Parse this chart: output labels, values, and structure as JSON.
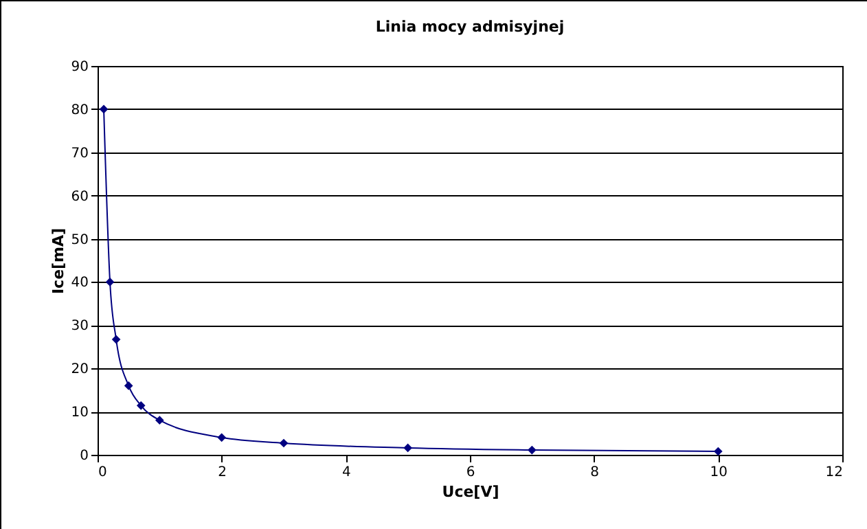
{
  "chart_data": {
    "type": "line",
    "title": "Linia mocy admisyjnej",
    "xlabel": "Uce[V]",
    "ylabel": "Ice[mA]",
    "x": [
      0.1,
      0.2,
      0.3,
      0.5,
      0.7,
      1,
      2,
      3,
      5,
      7,
      10
    ],
    "series": [
      {
        "color": "#000080",
        "values": [
          80,
          40,
          26.7,
          16,
          11.4,
          8,
          4,
          2.7,
          1.6,
          1.1,
          0.8
        ]
      }
    ],
    "xlim": [
      0,
      12
    ],
    "xticks": [
      0,
      2,
      4,
      6,
      8,
      10,
      12
    ],
    "ylim": [
      0,
      90
    ],
    "yticks": [
      0,
      10,
      20,
      30,
      40,
      50,
      60,
      70,
      80,
      90
    ],
    "grid": "y",
    "marker": "diamond",
    "line_style": "solid"
  }
}
